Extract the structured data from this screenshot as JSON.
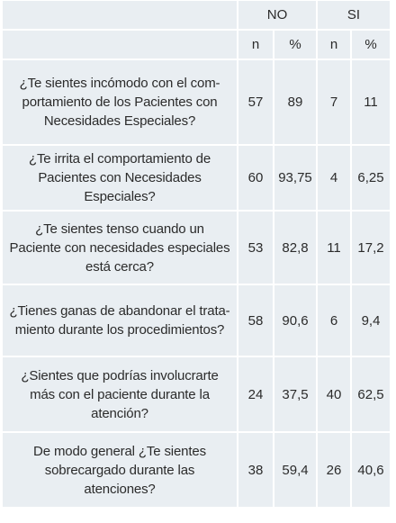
{
  "header": {
    "group_no": "NO",
    "group_si": "SI",
    "col_n": "n",
    "col_pct": "%"
  },
  "rows": [
    {
      "question": "¿Te sientes incómodo con el com-portamiento de los Pacientes con Necesidades Especiales?",
      "no_n": "57",
      "no_pct": "89",
      "si_n": "7",
      "si_pct": "11"
    },
    {
      "question": "¿Te irrita el comportamiento de Pacientes con Necesidades Especiales?",
      "no_n": "60",
      "no_pct": "93,75",
      "si_n": "4",
      "si_pct": "6,25"
    },
    {
      "question": "¿Te sientes tenso cuando un Paciente con necesidades especiales está cerca?",
      "no_n": "53",
      "no_pct": "82,8",
      "si_n": "11",
      "si_pct": "17,2"
    },
    {
      "question": "¿Tienes ganas de abandonar el trata-miento durante los procedimientos?",
      "no_n": "58",
      "no_pct": "90,6",
      "si_n": "6",
      "si_pct": "9,4"
    },
    {
      "question": "¿Sientes que podrías involucrarte más con el paciente durante la atención?",
      "no_n": "24",
      "no_pct": "37,5",
      "si_n": "40",
      "si_pct": "62,5"
    },
    {
      "question": "De modo general ¿Te sientes sobrecargado durante las atenciones?",
      "no_n": "38",
      "no_pct": "59,4",
      "si_n": "26",
      "si_pct": "40,6"
    }
  ]
}
